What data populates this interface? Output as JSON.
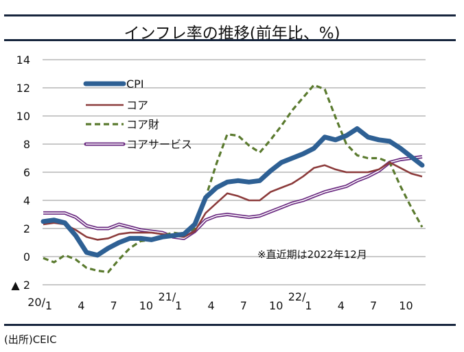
{
  "header": {
    "title": "インフレ率の推移(前年比、%)"
  },
  "footer": {
    "source": "(出所)CEIC"
  },
  "colors": {
    "cpi": "#2e6094",
    "core": "#8b3a3a",
    "core_goods": "#5a7a2e",
    "core_services": "#6a2a80",
    "grid": "#c8c8c8",
    "rule": "#17253d"
  },
  "chart_data": {
    "type": "line",
    "title": "インフレ率の推移(前年比、%)",
    "xlabel": "",
    "ylabel": "",
    "ylim": [
      -2,
      14
    ],
    "yticks": [
      -2,
      0,
      2,
      4,
      6,
      8,
      10,
      12,
      14
    ],
    "ytick_labels": [
      "▲ 2",
      "0",
      "2",
      "4",
      "6",
      "8",
      "10",
      "12",
      "14"
    ],
    "grid": true,
    "legend_position": "top-left",
    "x": [
      "2020/1",
      "2020/2",
      "2020/3",
      "2020/4",
      "2020/5",
      "2020/6",
      "2020/7",
      "2020/8",
      "2020/9",
      "2020/10",
      "2020/11",
      "2020/12",
      "2021/1",
      "2021/2",
      "2021/3",
      "2021/4",
      "2021/5",
      "2021/6",
      "2021/7",
      "2021/8",
      "2021/9",
      "2021/10",
      "2021/11",
      "2021/12",
      "2022/1",
      "2022/2",
      "2022/3",
      "2022/4",
      "2022/5",
      "2022/6",
      "2022/7",
      "2022/8",
      "2022/9",
      "2022/10",
      "2022/11",
      "2022/12"
    ],
    "xtick_labels": [
      {
        "index": 0,
        "month": "1",
        "year": "20/"
      },
      {
        "index": 3,
        "month": "4",
        "year": ""
      },
      {
        "index": 6,
        "month": "7",
        "year": ""
      },
      {
        "index": 9,
        "month": "10",
        "year": ""
      },
      {
        "index": 12,
        "month": "1",
        "year": "21/"
      },
      {
        "index": 15,
        "month": "4",
        "year": ""
      },
      {
        "index": 18,
        "month": "7",
        "year": ""
      },
      {
        "index": 21,
        "month": "10",
        "year": ""
      },
      {
        "index": 24,
        "month": "1",
        "year": "22/"
      },
      {
        "index": 27,
        "month": "4",
        "year": ""
      },
      {
        "index": 30,
        "month": "7",
        "year": ""
      },
      {
        "index": 33,
        "month": "10",
        "year": ""
      }
    ],
    "series": [
      {
        "key": "cpi",
        "name": "CPI",
        "style": "thick",
        "values": [
          2.5,
          2.6,
          2.4,
          1.5,
          0.3,
          0.1,
          0.6,
          1.0,
          1.3,
          1.3,
          1.2,
          1.4,
          1.5,
          1.6,
          2.3,
          4.2,
          4.9,
          5.3,
          5.4,
          5.3,
          5.4,
          6.1,
          6.7,
          7.0,
          7.3,
          7.7,
          8.5,
          8.3,
          8.6,
          9.1,
          8.5,
          8.3,
          8.2,
          7.7,
          7.1,
          6.5
        ]
      },
      {
        "key": "core",
        "name": "コア",
        "style": "solid",
        "values": [
          2.3,
          2.4,
          2.3,
          1.9,
          1.4,
          1.2,
          1.3,
          1.6,
          1.7,
          1.7,
          1.7,
          1.6,
          1.5,
          1.4,
          1.8,
          3.1,
          3.8,
          4.5,
          4.3,
          4.0,
          4.0,
          4.6,
          4.9,
          5.2,
          5.7,
          6.3,
          6.5,
          6.2,
          6.0,
          6.0,
          6.0,
          6.2,
          6.7,
          6.3,
          5.9,
          5.7
        ]
      },
      {
        "key": "core_goods",
        "name": "コア財",
        "style": "dashed",
        "values": [
          -0.1,
          -0.4,
          0.1,
          -0.2,
          -0.8,
          -1.0,
          -1.1,
          -0.2,
          0.6,
          1.1,
          1.2,
          1.5,
          1.7,
          1.6,
          2.0,
          4.2,
          6.6,
          8.7,
          8.6,
          7.9,
          7.4,
          8.3,
          9.3,
          10.4,
          11.3,
          12.2,
          11.9,
          9.9,
          8.0,
          7.2,
          7.0,
          7.0,
          6.7,
          5.0,
          3.5,
          2.1
        ]
      },
      {
        "key": "core_services",
        "name": "コアサービス",
        "style": "double",
        "values": [
          3.1,
          3.1,
          3.1,
          2.8,
          2.2,
          2.0,
          2.0,
          2.3,
          2.1,
          1.9,
          1.8,
          1.7,
          1.4,
          1.3,
          1.8,
          2.6,
          2.9,
          3.0,
          2.9,
          2.8,
          2.9,
          3.2,
          3.5,
          3.8,
          4.0,
          4.3,
          4.6,
          4.8,
          5.0,
          5.4,
          5.7,
          6.1,
          6.7,
          6.9,
          7.0,
          7.1
        ]
      }
    ],
    "annotations": [
      "※直近期は2022年12月"
    ]
  }
}
